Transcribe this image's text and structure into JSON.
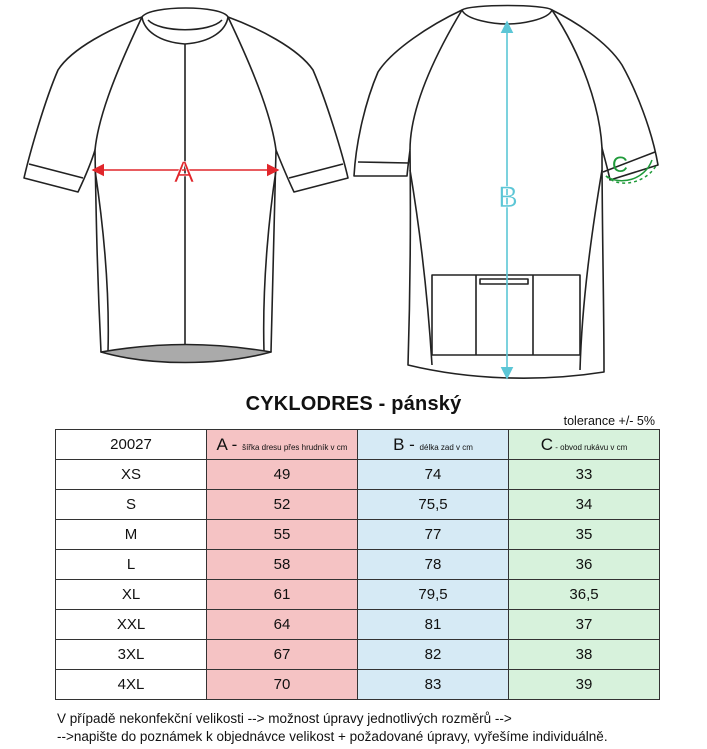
{
  "diagram": {
    "label_a": "A",
    "label_b": "B",
    "label_c": "C",
    "color_a": "#e0262b",
    "color_b": "#5cc6d6",
    "color_c": "#1f9a3a"
  },
  "title": "CYKLODRES - pánský",
  "tolerance": "tolerance +/- 5%",
  "table": {
    "header": {
      "code": "20027",
      "a_letter": "A - ",
      "a_desc": "šířka dresu přes hrudník v cm",
      "b_letter": "B - ",
      "b_desc": "délka zad v cm",
      "c_letter": "C",
      "c_desc": " - obvod rukávu v cm"
    },
    "rows": [
      {
        "size": "XS",
        "a": "49",
        "b": "74",
        "c": "33"
      },
      {
        "size": "S",
        "a": "52",
        "b": "75,5",
        "c": "34"
      },
      {
        "size": "M",
        "a": "55",
        "b": "77",
        "c": "35"
      },
      {
        "size": "L",
        "a": "58",
        "b": "78",
        "c": "36"
      },
      {
        "size": "XL",
        "a": "61",
        "b": "79,5",
        "c": "36,5"
      },
      {
        "size": "XXL",
        "a": "64",
        "b": "81",
        "c": "37"
      },
      {
        "size": "3XL",
        "a": "67",
        "b": "82",
        "c": "38"
      },
      {
        "size": "4XL",
        "a": "70",
        "b": "83",
        "c": "39"
      }
    ],
    "colors": {
      "a": "#f5c3c4",
      "b": "#d6eaf5",
      "c": "#d7f2dc"
    }
  },
  "notes": [
    "V případě nekonfekční velikosti --> možnost úpravy jednotlivých rozměrů -->",
    "-->napište do poznámek k objednávce velikost + požadované úpravy, vyřešíme individuálně."
  ]
}
